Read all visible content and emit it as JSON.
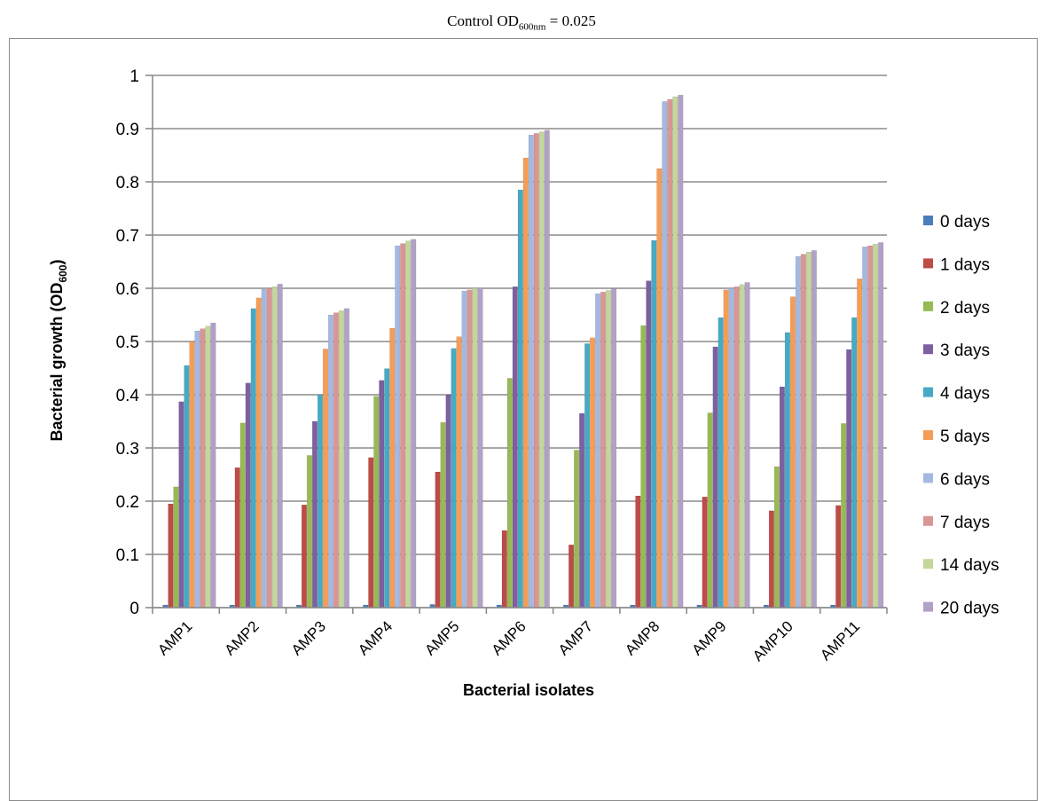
{
  "header": {
    "title_prefix": "Control OD",
    "title_sub": "600nm",
    "title_suffix": " = 0.025"
  },
  "chart_data": {
    "type": "bar",
    "title": "Control OD600nm = 0.025",
    "xlabel": "Bacterial isolates",
    "ylabel": "Bacterial growth (OD600)",
    "ylabel_main": "Bacterial growth (OD",
    "ylabel_sub": "600",
    "ylabel_close": ")",
    "ylim": [
      0,
      1
    ],
    "yticks": [
      "0",
      "0.1",
      "0.2",
      "0.3",
      "0.4",
      "0.5",
      "0.6",
      "0.7",
      "0.8",
      "0.9",
      "1"
    ],
    "grid": true,
    "legend_position": "right",
    "categories": [
      "AMP1",
      "AMP2",
      "AMP3",
      "AMP4",
      "AMP5",
      "AMP6",
      "AMP7",
      "AMP8",
      "AMP9",
      "AMP10",
      "AMP11"
    ],
    "series": [
      {
        "name": "0 days",
        "color": "#4a7ebb",
        "values": [
          0.005,
          0.005,
          0.005,
          0.005,
          0.006,
          0.005,
          0.005,
          0.005,
          0.005,
          0.005,
          0.005
        ]
      },
      {
        "name": "1 days",
        "color": "#be4b48",
        "values": [
          0.195,
          0.263,
          0.193,
          0.282,
          0.255,
          0.145,
          0.118,
          0.21,
          0.208,
          0.182,
          0.192
        ]
      },
      {
        "name": "2 days",
        "color": "#98b954",
        "values": [
          0.227,
          0.347,
          0.286,
          0.397,
          0.348,
          0.431,
          0.296,
          0.53,
          0.366,
          0.265,
          0.346
        ]
      },
      {
        "name": "3 days",
        "color": "#7d60a0",
        "values": [
          0.387,
          0.422,
          0.35,
          0.427,
          0.4,
          0.603,
          0.365,
          0.614,
          0.49,
          0.415,
          0.485
        ]
      },
      {
        "name": "4 days",
        "color": "#46aac5",
        "values": [
          0.455,
          0.562,
          0.4,
          0.449,
          0.487,
          0.785,
          0.496,
          0.69,
          0.545,
          0.517,
          0.545
        ]
      },
      {
        "name": "5 days",
        "color": "#f59d56",
        "values": [
          0.5,
          0.582,
          0.486,
          0.525,
          0.509,
          0.845,
          0.507,
          0.825,
          0.597,
          0.584,
          0.618
        ]
      },
      {
        "name": "6 days",
        "color": "#a5b9e0",
        "values": [
          0.52,
          0.598,
          0.55,
          0.68,
          0.595,
          0.888,
          0.59,
          0.951,
          0.6,
          0.66,
          0.678
        ]
      },
      {
        "name": "7 days",
        "color": "#d99694",
        "values": [
          0.524,
          0.6,
          0.554,
          0.684,
          0.597,
          0.891,
          0.593,
          0.955,
          0.603,
          0.664,
          0.68
        ]
      },
      {
        "name": "14 days",
        "color": "#c3d69b",
        "values": [
          0.529,
          0.603,
          0.558,
          0.689,
          0.6,
          0.894,
          0.596,
          0.96,
          0.607,
          0.668,
          0.683
        ]
      },
      {
        "name": "20 days",
        "color": "#b2a1c7",
        "values": [
          0.535,
          0.608,
          0.562,
          0.692,
          0.601,
          0.897,
          0.599,
          0.963,
          0.611,
          0.671,
          0.686
        ]
      }
    ]
  }
}
